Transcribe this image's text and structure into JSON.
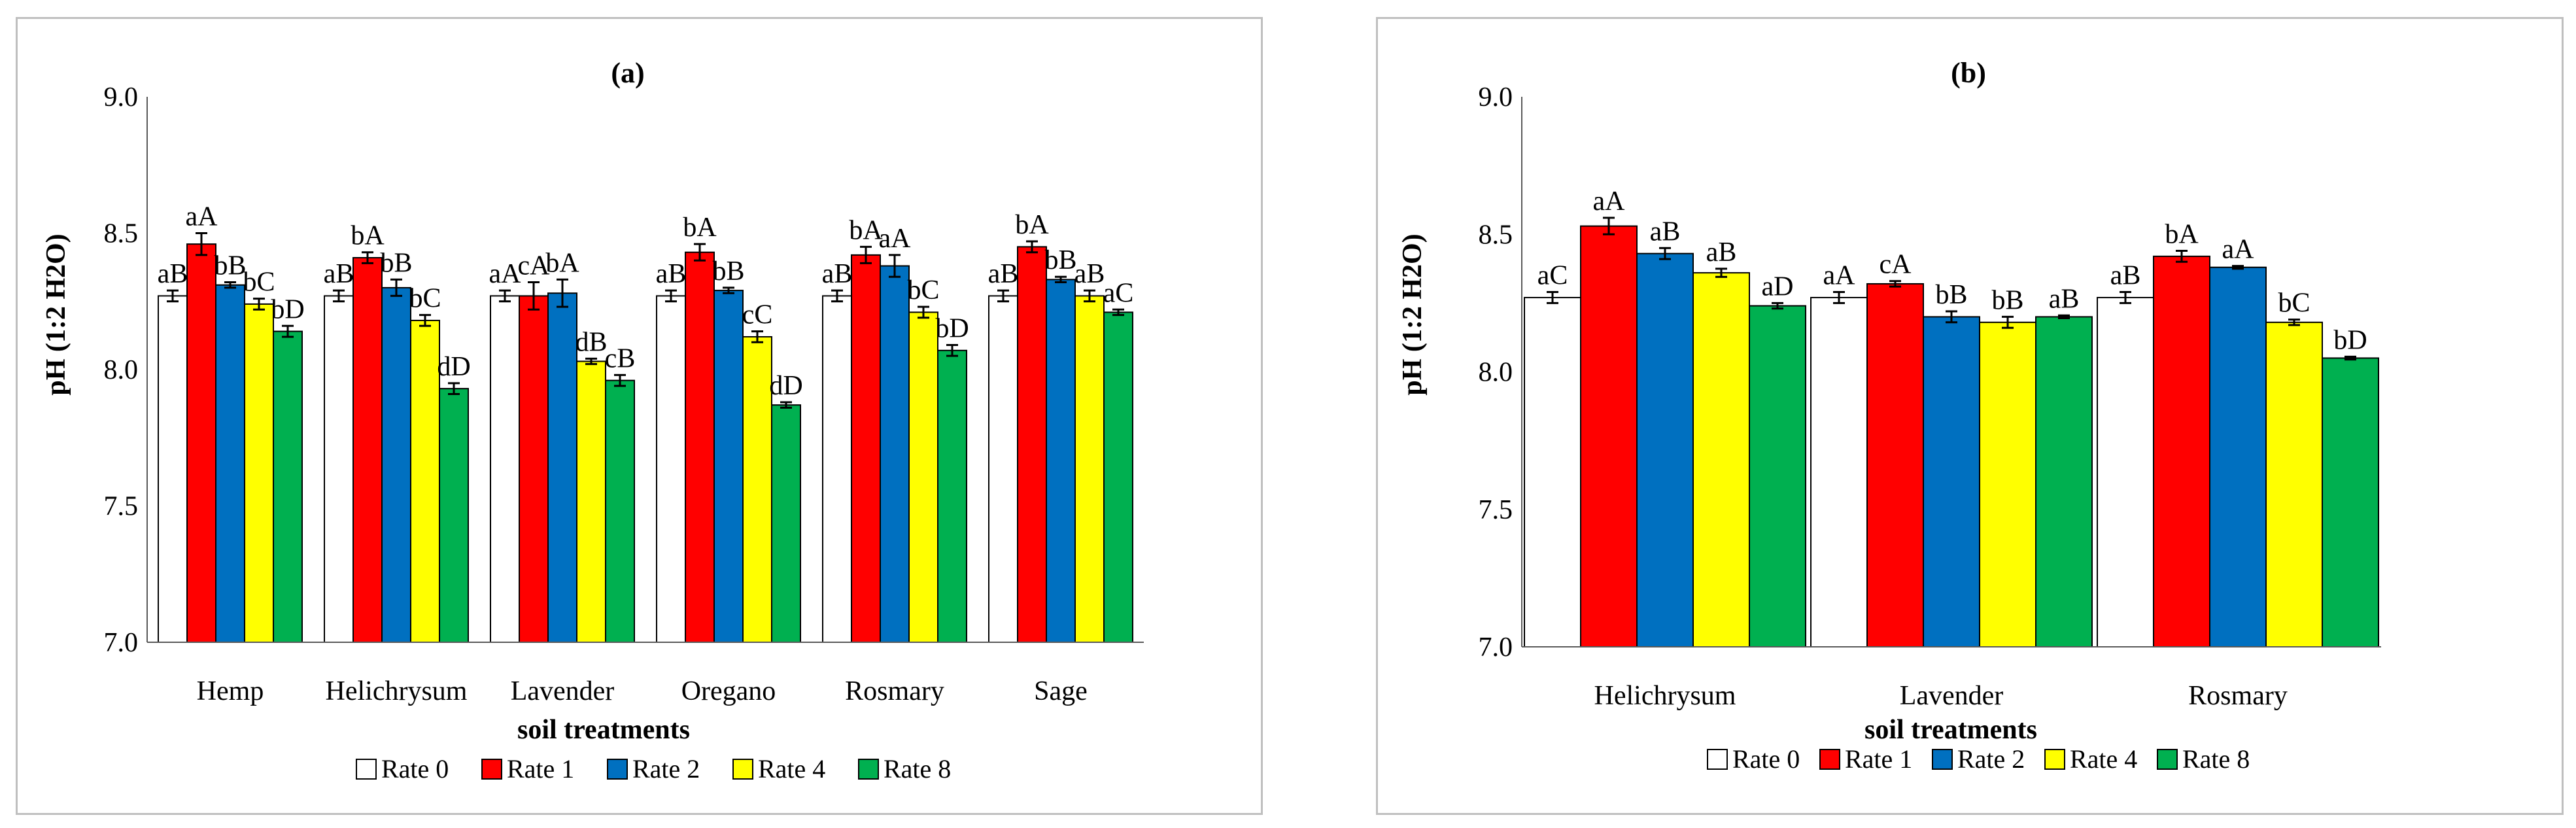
{
  "colors": {
    "Rate 0": "#ffffff",
    "Rate 1": "#ff0000",
    "Rate 2": "#0070c0",
    "Rate 4": "#ffff00",
    "Rate 8": "#00b050"
  },
  "chart_data": [
    {
      "type": "bar",
      "title": "(a)",
      "xlabel": "soil treatments",
      "ylabel": "pH (1:2 H2O)",
      "ylim": [
        7.0,
        9.0
      ],
      "yticks": [
        "7.0",
        "7.5",
        "8.0",
        "8.5",
        "9.0"
      ],
      "categories": [
        "Hemp",
        "Helichrysum",
        "Lavender",
        "Oregano",
        "Rosmary",
        "Sage"
      ],
      "series": [
        {
          "name": "Rate 0",
          "values": [
            8.27,
            8.27,
            8.27,
            8.27,
            8.27,
            8.27
          ],
          "errors": [
            0.02,
            0.02,
            0.02,
            0.02,
            0.02,
            0.02
          ],
          "labels": [
            "aB",
            "aB",
            "aA",
            "aB",
            "aB",
            "aB"
          ]
        },
        {
          "name": "Rate 1",
          "values": [
            8.46,
            8.41,
            8.27,
            8.43,
            8.42,
            8.45
          ],
          "errors": [
            0.04,
            0.02,
            0.05,
            0.03,
            0.03,
            0.02
          ],
          "labels": [
            "aA",
            "bA",
            "cA",
            "bA",
            "bA",
            "bA"
          ]
        },
        {
          "name": "Rate 2",
          "values": [
            8.31,
            8.3,
            8.28,
            8.29,
            8.38,
            8.33
          ],
          "errors": [
            0.01,
            0.03,
            0.05,
            0.01,
            0.04,
            0.01
          ],
          "labels": [
            "bB",
            "bB",
            "bA",
            "bB",
            "aA",
            "bB"
          ]
        },
        {
          "name": "Rate 4",
          "values": [
            8.24,
            8.18,
            8.03,
            8.12,
            8.21,
            8.27
          ],
          "errors": [
            0.02,
            0.02,
            0.01,
            0.02,
            0.02,
            0.02
          ],
          "labels": [
            "bC",
            "bC",
            "dB",
            "cC",
            "bC",
            "aB"
          ]
        },
        {
          "name": "Rate 8",
          "values": [
            8.14,
            7.93,
            7.96,
            7.87,
            8.07,
            8.21
          ],
          "errors": [
            0.02,
            0.02,
            0.02,
            0.01,
            0.02,
            0.01
          ],
          "labels": [
            "bD",
            "dD",
            "cB",
            "dD",
            "bD",
            "aC"
          ]
        }
      ],
      "legend": [
        "Rate 0",
        "Rate 1",
        "Rate 2",
        "Rate 4",
        "Rate 8"
      ]
    },
    {
      "type": "bar",
      "title": "(b)",
      "xlabel": "soil treatments",
      "ylabel": "pH (1:2 H2O)",
      "ylim": [
        7.0,
        9.0
      ],
      "yticks": [
        "7.0",
        "7.5",
        "8.0",
        "8.5",
        "9.0"
      ],
      "categories": [
        "Helichrysum",
        "Lavender",
        "Rosmary"
      ],
      "series": [
        {
          "name": "Rate 0",
          "values": [
            8.27,
            8.27,
            8.27
          ],
          "errors": [
            0.02,
            0.02,
            0.02
          ],
          "labels": [
            "aC",
            "aA",
            "aB"
          ]
        },
        {
          "name": "Rate 1",
          "values": [
            8.53,
            8.32,
            8.42
          ],
          "errors": [
            0.03,
            0.01,
            0.02
          ],
          "labels": [
            "aA",
            "cA",
            "bA"
          ]
        },
        {
          "name": "Rate 2",
          "values": [
            8.43,
            8.2,
            8.38
          ],
          "errors": [
            0.02,
            0.02,
            0.005
          ],
          "labels": [
            "aB",
            "bB",
            "aA"
          ]
        },
        {
          "name": "Rate 4",
          "values": [
            8.36,
            8.18,
            8.18
          ],
          "errors": [
            0.015,
            0.02,
            0.01
          ],
          "labels": [
            "aB",
            "bB",
            "bC"
          ]
        },
        {
          "name": "Rate 8",
          "values": [
            8.24,
            8.2,
            8.05
          ],
          "errors": [
            0.01,
            0.005,
            0.005
          ],
          "labels": [
            "aD",
            "aB",
            "bD"
          ]
        }
      ],
      "legend": [
        "Rate 0",
        "Rate 1",
        "Rate 2",
        "Rate 4",
        "Rate 8"
      ]
    }
  ]
}
